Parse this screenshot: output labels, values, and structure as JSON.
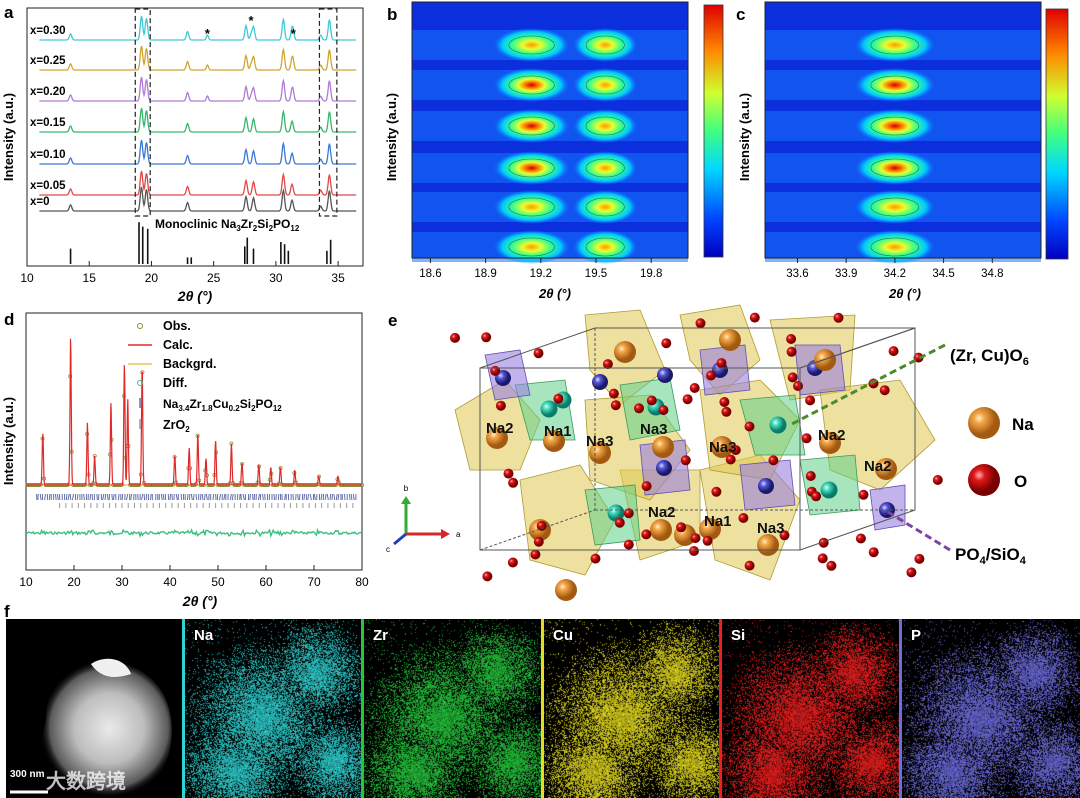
{
  "panel_labels": {
    "a": "a",
    "b": "b",
    "c": "c",
    "d": "d",
    "e": "e",
    "f": "f"
  },
  "colors": {
    "x030": "#3ec9d6",
    "x025": "#d1a52d",
    "x020": "#b07ad6",
    "x015": "#38b66e",
    "x010": "#3a79d4",
    "x005": "#e04848",
    "x000": "#555555",
    "calc": "#e02a2a",
    "backgrd": "#e5c05a",
    "obs": "#8a8a30",
    "diff": "#3fbf7f",
    "tick_main": "#6670a8",
    "tick_zro2": "#999999"
  },
  "panel_a": {
    "ylabel": "Intensity (a.u.)",
    "xlabel": "2θ (°)",
    "ref_label": "Monoclinic Na3Zr2Si2PO12",
    "x_ticks": [
      "10",
      "15",
      "20",
      "25",
      "30",
      "35"
    ],
    "xlim": [
      10,
      37
    ],
    "stars": [
      "*",
      "*",
      "*"
    ],
    "series_labels": [
      "x=0.30",
      "x=0.25",
      "x=0.20",
      "x=0.15",
      "x=0.10",
      "x=0.05",
      "x=0"
    ]
  },
  "panel_b": {
    "ylabel": "Intensity (a.u.)",
    "xlabel": "2θ (°)",
    "x_ticks": [
      "18.6",
      "18.9",
      "19.2",
      "19.5",
      "19.8"
    ]
  },
  "panel_c": {
    "ylabel": "Intensity (a.u.)",
    "xlabel": "2θ (°)",
    "x_ticks": [
      "33.6",
      "33.9",
      "34.2",
      "34.5",
      "34.8"
    ]
  },
  "panel_d": {
    "ylabel": "Intensity (a.u.)",
    "xlabel": "2θ (°)",
    "x_ticks": [
      "10",
      "20",
      "30",
      "40",
      "50",
      "60",
      "70",
      "80"
    ],
    "xlim": [
      10,
      80
    ],
    "legend": [
      "Obs.",
      "Calc.",
      "Backgrd.",
      "Diff.",
      "Na3.4Zr1.8Cu0.2Si2PO12",
      "ZrO2"
    ]
  },
  "panel_e": {
    "site_labels": [
      "Na2",
      "Na1",
      "Na3",
      "Na3",
      "Na3",
      "Na2",
      "Na2",
      "Na2",
      "Na1",
      "Na3"
    ],
    "legend_na": "Na",
    "legend_o": "O",
    "zr_label": "(Zr, Cu)O6",
    "p_label": "PO4/SiO4",
    "axes": [
      "b",
      "c",
      "a"
    ]
  },
  "panel_f": {
    "scale_text": "300 nm",
    "watermark": "大数跨境",
    "maps": [
      {
        "label": "Na",
        "color": "#2fd4d4"
      },
      {
        "label": "Zr",
        "color": "#25c83c"
      },
      {
        "label": "Cu",
        "color": "#e6dd1f"
      },
      {
        "label": "Si",
        "color": "#ee1f1f"
      },
      {
        "label": "P",
        "color": "#6d6de0"
      }
    ]
  },
  "chart_data": [
    {
      "type": "line",
      "title": "",
      "xlabel": "2θ (°)",
      "ylabel": "Intensity (a.u.)",
      "xlim": [
        10,
        37
      ],
      "x_ticks": [
        10,
        15,
        20,
        25,
        30,
        35
      ],
      "series": [
        {
          "name": "x=0.30"
        },
        {
          "name": "x=0.25"
        },
        {
          "name": "x=0.20"
        },
        {
          "name": "x=0.15"
        },
        {
          "name": "x=0.10"
        },
        {
          "name": "x=0.05"
        },
        {
          "name": "x=0"
        }
      ],
      "peaks_2theta": [
        13.5,
        19.2,
        19.6,
        22.9,
        27.6,
        28.2,
        30.6,
        31.3,
        33.6,
        34.3
      ],
      "peak_rel_heights": [
        0.25,
        1.0,
        0.9,
        0.35,
        0.6,
        0.55,
        0.85,
        0.45,
        0.2,
        0.85
      ],
      "reference_sticks_2theta": [
        13.5,
        19.0,
        19.3,
        19.7,
        22.9,
        23.2,
        27.5,
        27.7,
        28.2,
        30.4,
        30.7,
        31.0,
        34.1,
        34.4
      ],
      "reference_stick_heights": [
        0.35,
        0.95,
        0.85,
        0.8,
        0.15,
        0.15,
        0.4,
        0.6,
        0.35,
        0.5,
        0.45,
        0.3,
        0.3,
        0.55
      ],
      "impurity_star_2theta": [
        24.5,
        28.0,
        31.4
      ],
      "zoom_windows_2theta": [
        [
          18.7,
          19.9
        ],
        [
          33.5,
          34.9
        ]
      ]
    },
    {
      "type": "heatmap",
      "xlabel": "2θ (°)",
      "ylabel": "Intensity (a.u.)",
      "xlim": [
        18.5,
        20.0
      ],
      "x_ticks": [
        18.6,
        18.9,
        19.2,
        19.5,
        19.8
      ],
      "peak_centers_2theta": [
        19.15,
        19.55
      ],
      "rows": 7
    },
    {
      "type": "heatmap",
      "xlabel": "2θ (°)",
      "ylabel": "Intensity (a.u.)",
      "xlim": [
        33.4,
        35.1
      ],
      "x_ticks": [
        33.6,
        33.9,
        34.2,
        34.5,
        34.8
      ],
      "peak_centers_2theta": [
        34.2
      ],
      "rows": 7
    },
    {
      "type": "line",
      "xlabel": "2θ (°)",
      "ylabel": "Intensity (a.u.)",
      "xlim": [
        10,
        80
      ],
      "x_ticks": [
        10,
        20,
        30,
        40,
        50,
        60,
        70,
        80
      ],
      "series": [
        {
          "name": "Obs."
        },
        {
          "name": "Calc."
        },
        {
          "name": "Backgrd."
        },
        {
          "name": "Diff."
        }
      ],
      "peaks_2theta": [
        13.5,
        19.3,
        22.8,
        24.3,
        27.7,
        30.5,
        31.2,
        34.2,
        41,
        44,
        45.8,
        47.5,
        49.5,
        52.8,
        55,
        58.5,
        61,
        63,
        66,
        71,
        75
      ],
      "peak_rel_heights": [
        0.35,
        1.0,
        0.42,
        0.2,
        0.56,
        0.82,
        0.58,
        0.8,
        0.2,
        0.25,
        0.35,
        0.18,
        0.3,
        0.28,
        0.15,
        0.14,
        0.12,
        0.12,
        0.1,
        0.06,
        0.06
      ],
      "reference_labels": [
        "Na3.4Zr1.8Cu0.2Si2PO12",
        "ZrO2"
      ]
    }
  ]
}
